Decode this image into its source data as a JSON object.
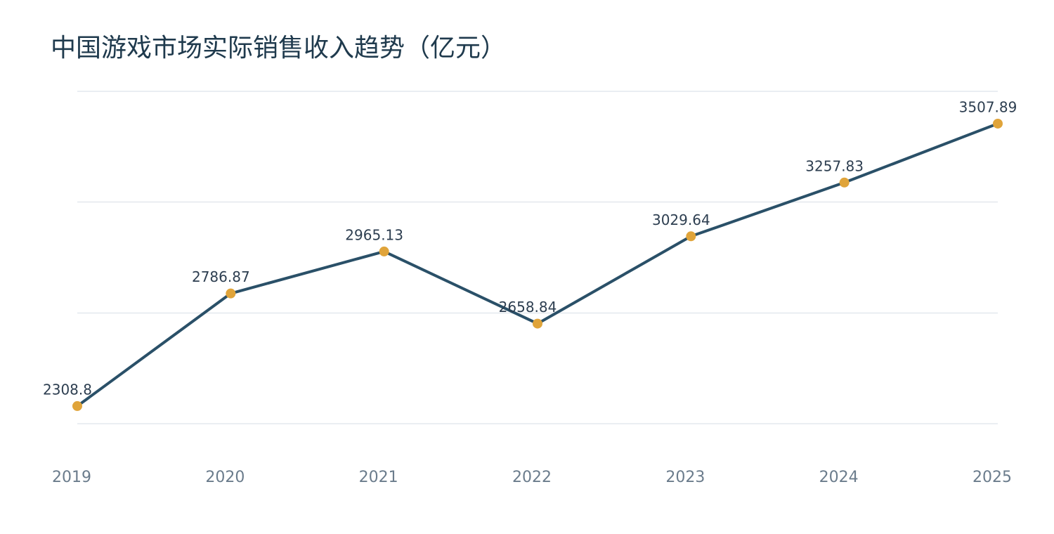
{
  "chart_data": {
    "type": "line",
    "title": "中国游戏市场实际销售收入趋势（亿元）",
    "categories": [
      "2019",
      "2020",
      "2021",
      "2022",
      "2023",
      "2024",
      "2025"
    ],
    "series": [
      {
        "name": "实际销售收入",
        "color": "#2a5068",
        "marker_color": "#e0a43a",
        "values": [
          2308.8,
          2786.87,
          2965.13,
          2658.84,
          3029.64,
          3257.83,
          3507.89
        ]
      }
    ],
    "ylim": [
      2234,
      3645
    ],
    "yticks": [
      2234,
      2704,
      3175,
      3645
    ],
    "ytick_labels": false,
    "grid": true,
    "legend": false
  }
}
